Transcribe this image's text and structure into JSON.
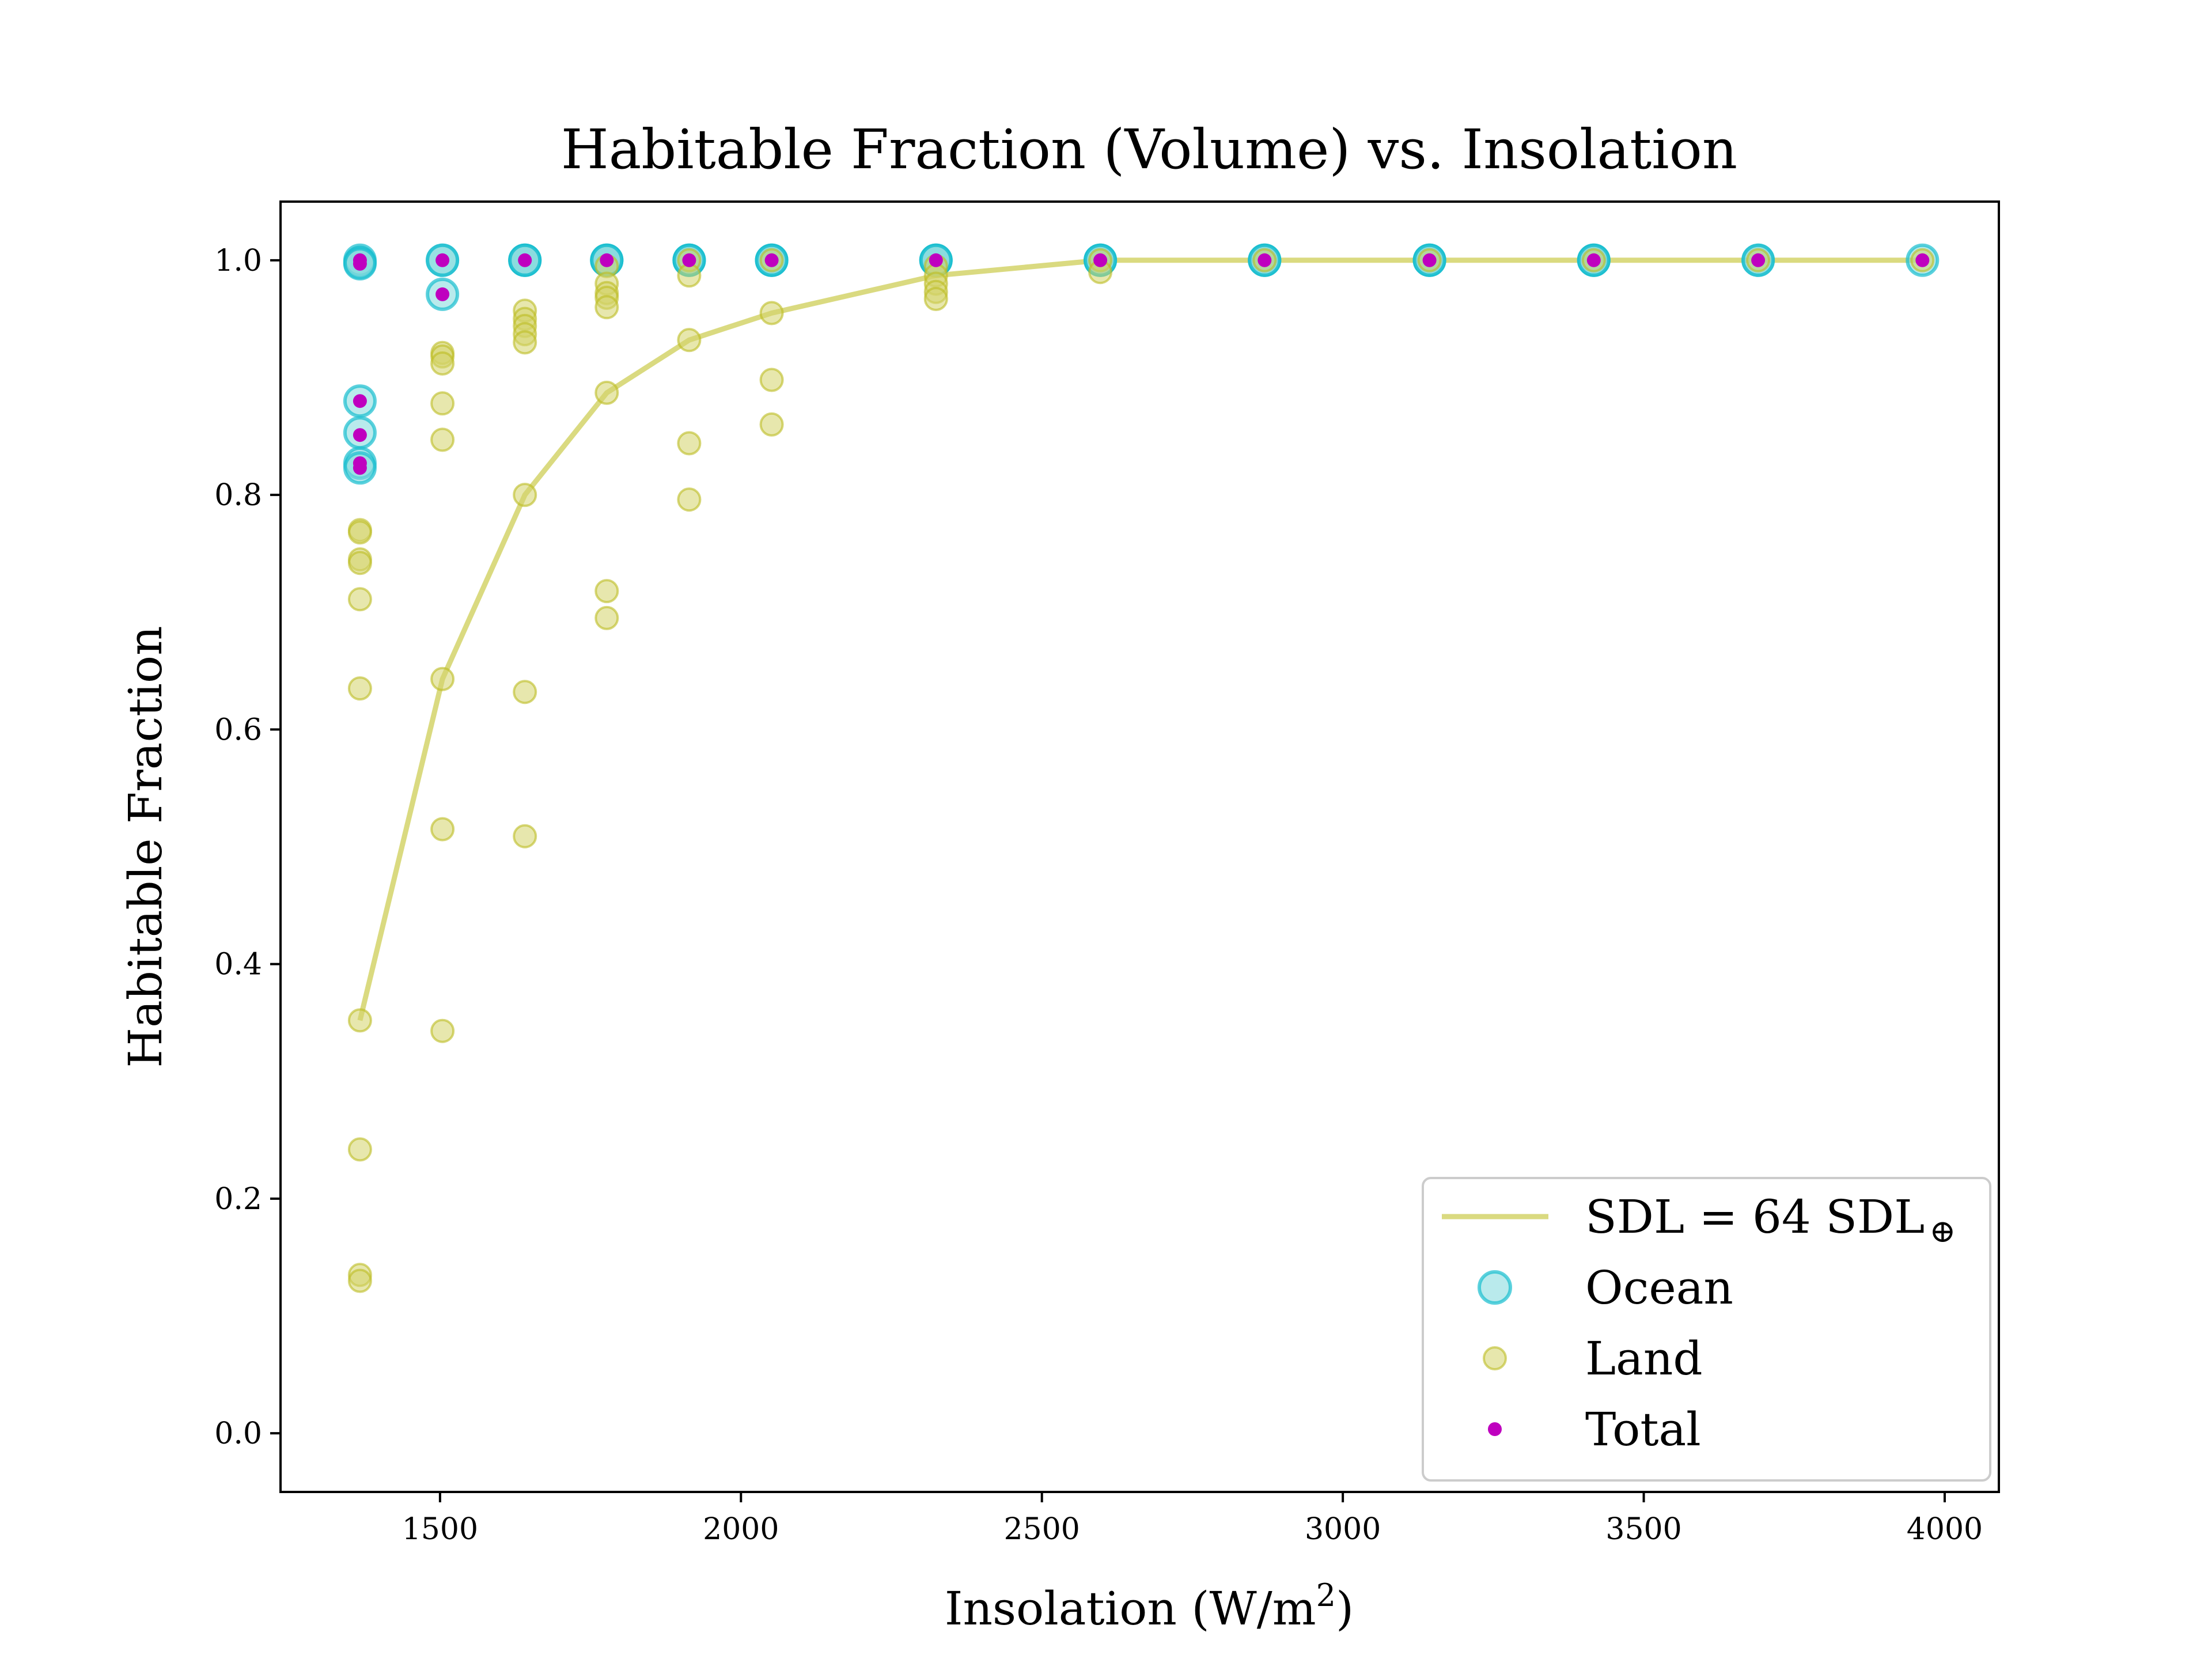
{
  "chart_data": {
    "type": "scatter",
    "title": "Habitable Fraction (Volume) vs. Insolation",
    "xlabel": {
      "text": "Insolation (W/m",
      "sup": "2",
      "close": ")"
    },
    "ylabel": "Habitable Fraction",
    "xlim": [
      1235,
      4090
    ],
    "ylim": [
      -0.05,
      1.05
    ],
    "x_ticks": [
      {
        "value": 1500,
        "label": "1500"
      },
      {
        "value": 2000,
        "label": "2000"
      },
      {
        "value": 2500,
        "label": "2500"
      },
      {
        "value": 3000,
        "label": "3000"
      },
      {
        "value": 3500,
        "label": "3500"
      },
      {
        "value": 4000,
        "label": "4000"
      }
    ],
    "y_ticks": [
      {
        "value": 0.0,
        "label": "0.0"
      },
      {
        "value": 0.2,
        "label": "0.2"
      },
      {
        "value": 0.4,
        "label": "0.4"
      },
      {
        "value": 0.6,
        "label": "0.6"
      },
      {
        "value": 0.8,
        "label": "0.8"
      },
      {
        "value": 1.0,
        "label": "1.0"
      }
    ],
    "grid": false,
    "legend_position": "lower-right",
    "colors": {
      "sdl_line": "#d4d46a",
      "ocean_fill": "#7fd9dc",
      "ocean_edge": "#17becf",
      "land_fill": "#d4d46a",
      "land_edge": "#bcbd22",
      "total": "#bf00bf",
      "legend_border": "#cccccc"
    },
    "legend": [
      {
        "kind": "line",
        "main": "SDL = 64 SDL",
        "sub": "⊕",
        "color_key": "sdl_line"
      },
      {
        "kind": "ocean",
        "main": "Ocean",
        "sub": "",
        "color_key": "ocean_fill"
      },
      {
        "kind": "land",
        "main": "Land",
        "sub": "",
        "color_key": "land_fill"
      },
      {
        "kind": "total",
        "main": "Total",
        "sub": "",
        "color_key": "total"
      }
    ],
    "sdl_line": {
      "name": "SDL = 64 SDL⊕",
      "x": [
        1367,
        1504,
        1641,
        1777,
        1914,
        2051,
        2324,
        2597,
        2870,
        3144,
        3417,
        3690,
        3963
      ],
      "y": [
        0.352,
        0.643,
        0.8,
        0.887,
        0.932,
        0.955,
        0.987,
        1.0,
        1.0,
        1.0,
        1.0,
        1.0,
        1.0
      ]
    },
    "ocean": {
      "name": "Ocean",
      "points": [
        [
          1367,
          1.0
        ],
        [
          1367,
          0.998
        ],
        [
          1367,
          0.997
        ],
        [
          1367,
          0.88
        ],
        [
          1367,
          0.853
        ],
        [
          1367,
          0.827
        ],
        [
          1367,
          0.823
        ],
        [
          1504,
          1.0
        ],
        [
          1504,
          1.0
        ],
        [
          1504,
          0.971
        ],
        [
          1641,
          1.0
        ],
        [
          1641,
          1.0
        ],
        [
          1641,
          1.0
        ],
        [
          1777,
          1.0
        ],
        [
          1777,
          1.0
        ],
        [
          1777,
          1.0
        ],
        [
          1914,
          1.0
        ],
        [
          1914,
          1.0
        ],
        [
          1914,
          1.0
        ],
        [
          2051,
          1.0
        ],
        [
          2051,
          1.0
        ],
        [
          2051,
          1.0
        ],
        [
          2324,
          1.0
        ],
        [
          2324,
          1.0
        ],
        [
          2324,
          1.0
        ],
        [
          2597,
          1.0
        ],
        [
          2597,
          1.0
        ],
        [
          2597,
          1.0
        ],
        [
          2870,
          1.0
        ],
        [
          2870,
          1.0
        ],
        [
          2870,
          1.0
        ],
        [
          3144,
          1.0
        ],
        [
          3144,
          1.0
        ],
        [
          3144,
          1.0
        ],
        [
          3417,
          1.0
        ],
        [
          3417,
          1.0
        ],
        [
          3417,
          1.0
        ],
        [
          3690,
          1.0
        ],
        [
          3690,
          1.0
        ],
        [
          3963,
          1.0
        ]
      ]
    },
    "land": {
      "name": "Land",
      "points": [
        [
          1367,
          0.77
        ],
        [
          1367,
          0.768
        ],
        [
          1367,
          0.745
        ],
        [
          1367,
          0.742
        ],
        [
          1367,
          0.711
        ],
        [
          1367,
          0.635
        ],
        [
          1367,
          0.352
        ],
        [
          1367,
          0.242
        ],
        [
          1367,
          0.135
        ],
        [
          1367,
          0.13
        ],
        [
          1504,
          0.921
        ],
        [
          1504,
          0.918
        ],
        [
          1504,
          0.912
        ],
        [
          1504,
          0.878
        ],
        [
          1504,
          0.847
        ],
        [
          1504,
          0.643
        ],
        [
          1504,
          0.515
        ],
        [
          1504,
          0.343
        ],
        [
          1641,
          0.957
        ],
        [
          1641,
          0.95
        ],
        [
          1641,
          0.944
        ],
        [
          1641,
          0.937
        ],
        [
          1641,
          0.93
        ],
        [
          1641,
          0.8
        ],
        [
          1641,
          0.632
        ],
        [
          1641,
          0.509
        ],
        [
          1777,
          0.995
        ],
        [
          1777,
          0.98
        ],
        [
          1777,
          0.972
        ],
        [
          1777,
          0.968
        ],
        [
          1777,
          0.96
        ],
        [
          1777,
          0.887
        ],
        [
          1777,
          0.718
        ],
        [
          1777,
          0.695
        ],
        [
          1914,
          1.0
        ],
        [
          1914,
          0.987
        ],
        [
          1914,
          0.932
        ],
        [
          1914,
          0.844
        ],
        [
          1914,
          0.796
        ],
        [
          2051,
          1.0
        ],
        [
          2051,
          0.955
        ],
        [
          2051,
          0.898
        ],
        [
          2051,
          0.86
        ],
        [
          2324,
          0.995
        ],
        [
          2324,
          0.987
        ],
        [
          2324,
          0.98
        ],
        [
          2324,
          0.973
        ],
        [
          2324,
          0.967
        ],
        [
          2597,
          1.0
        ],
        [
          2597,
          0.99
        ],
        [
          2870,
          1.0
        ],
        [
          3144,
          1.0
        ],
        [
          3417,
          1.0
        ],
        [
          3690,
          1.0
        ],
        [
          3963,
          1.0
        ]
      ]
    },
    "total": {
      "name": "Total",
      "points": [
        [
          1367,
          1.0
        ],
        [
          1367,
          0.997
        ],
        [
          1367,
          0.88
        ],
        [
          1367,
          0.851
        ],
        [
          1367,
          0.827
        ],
        [
          1367,
          0.823
        ],
        [
          1504,
          1.0
        ],
        [
          1504,
          0.971
        ],
        [
          1641,
          1.0
        ],
        [
          1777,
          1.0
        ],
        [
          1914,
          1.0
        ],
        [
          2051,
          1.0
        ],
        [
          2324,
          1.0
        ],
        [
          2597,
          1.0
        ],
        [
          2870,
          1.0
        ],
        [
          3144,
          1.0
        ],
        [
          3417,
          1.0
        ],
        [
          3690,
          1.0
        ],
        [
          3963,
          1.0
        ]
      ]
    }
  }
}
